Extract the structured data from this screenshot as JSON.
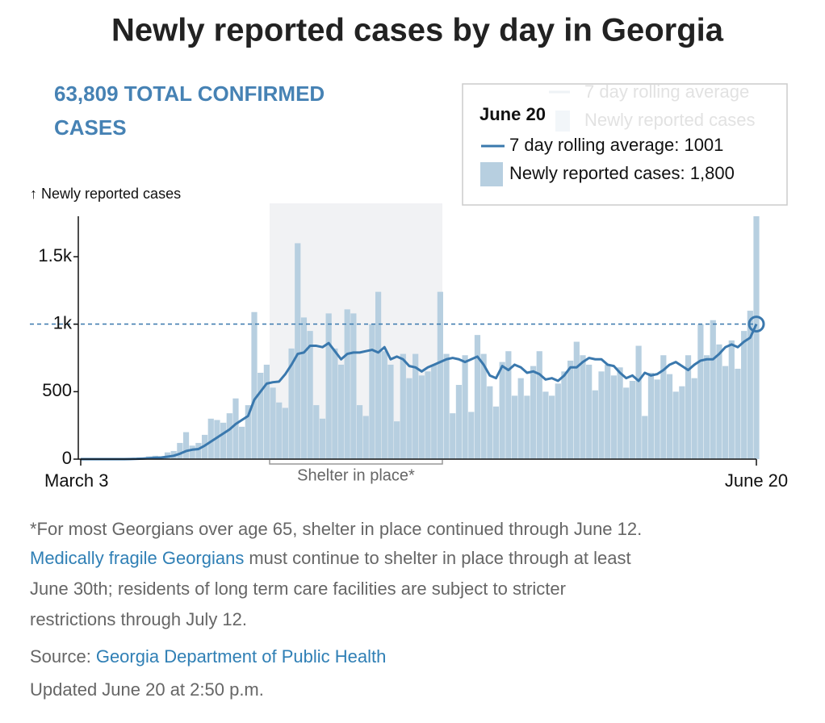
{
  "title": "Newly reported cases by day in Georgia",
  "chart_data": {
    "type": "bar",
    "subtitle_lines": [
      "63,809 TOTAL CONFIRMED",
      "CASES"
    ],
    "y_label": "↑ Newly reported cases",
    "categories": [
      "March 3",
      null,
      null,
      null,
      null,
      null,
      null,
      null,
      null,
      null,
      null,
      null,
      null,
      null,
      null,
      null,
      null,
      null,
      null,
      null,
      null,
      null,
      null,
      null,
      null,
      null,
      null,
      null,
      null,
      null,
      null,
      null,
      null,
      null,
      null,
      null,
      null,
      null,
      null,
      null,
      null,
      null,
      null,
      null,
      null,
      null,
      null,
      null,
      null,
      null,
      null,
      null,
      null,
      null,
      null,
      null,
      null,
      null,
      null,
      null,
      null,
      null,
      null,
      null,
      null,
      null,
      null,
      null,
      null,
      null,
      null,
      null,
      null,
      null,
      null,
      null,
      null,
      null,
      null,
      null,
      null,
      null,
      null,
      null,
      null,
      null,
      null,
      null,
      null,
      null,
      null,
      null,
      null,
      null,
      null,
      null,
      null,
      null,
      null,
      null,
      null,
      null,
      null,
      null,
      null,
      null,
      null,
      null,
      null,
      "June 20"
    ],
    "series": [
      {
        "name": "Newly reported cases",
        "type": "bar",
        "color": "#b7cfe0",
        "values": [
          0,
          0,
          0,
          0,
          0,
          0,
          0,
          0,
          2,
          5,
          10,
          20,
          25,
          20,
          50,
          60,
          120,
          200,
          100,
          120,
          180,
          300,
          290,
          270,
          340,
          450,
          240,
          400,
          1090,
          640,
          700,
          530,
          420,
          380,
          820,
          1600,
          1050,
          950,
          400,
          300,
          1080,
          820,
          700,
          1110,
          1080,
          400,
          320,
          1000,
          1240,
          800,
          700,
          280,
          780,
          600,
          780,
          620,
          650,
          700,
          1240,
          780,
          340,
          550,
          770,
          350,
          920,
          780,
          540,
          390,
          720,
          800,
          470,
          600,
          470,
          690,
          800,
          500,
          470,
          560,
          650,
          730,
          870,
          770,
          700,
          510,
          650,
          700,
          620,
          680,
          530,
          580,
          840,
          320,
          640,
          590,
          770,
          630,
          500,
          540,
          770,
          600,
          1000,
          770,
          1030,
          850,
          690,
          880,
          670,
          950,
          1100,
          1800
        ]
      },
      {
        "name": "7 day rolling average",
        "type": "line",
        "color": "#3a78ad",
        "values": [
          0,
          0,
          0,
          0,
          0,
          0,
          0,
          0,
          1,
          2,
          4,
          7,
          10,
          12,
          18,
          25,
          40,
          60,
          70,
          75,
          100,
          130,
          160,
          190,
          220,
          260,
          290,
          320,
          440,
          500,
          560,
          570,
          575,
          630,
          700,
          780,
          790,
          840,
          840,
          830,
          860,
          800,
          740,
          780,
          790,
          790,
          800,
          810,
          790,
          830,
          740,
          760,
          740,
          690,
          680,
          650,
          680,
          700,
          720,
          740,
          750,
          740,
          720,
          740,
          760,
          700,
          620,
          600,
          690,
          660,
          700,
          680,
          640,
          650,
          630,
          590,
          600,
          580,
          620,
          680,
          680,
          720,
          750,
          740,
          740,
          700,
          690,
          640,
          600,
          620,
          580,
          640,
          620,
          630,
          660,
          700,
          720,
          690,
          660,
          700,
          730,
          740,
          740,
          780,
          830,
          850,
          830,
          870,
          900,
          1001
        ]
      }
    ],
    "ylim": [
      0,
      1800
    ],
    "yticks": [
      0,
      500,
      {
        "value": 1000,
        "label": "1k"
      },
      {
        "value": 1500,
        "label": "1.5k"
      }
    ],
    "annotation": "Shelter in place*",
    "tooltip": {
      "title": "June 20",
      "lines": [
        "7 day rolling average: 1001",
        "Newly reported cases: 1,800"
      ]
    }
  },
  "footnote": {
    "line1": "*For most Georgians over age 65, shelter in place continued through June 12.",
    "link": "Medically fragile Georgians",
    "line2": "must continue to shelter in place through at least",
    "line3": "June 30th; residents of long term care facilities are subject to stricter",
    "line4": "restrictions through July 12."
  },
  "source_label": "Source:",
  "source": "Georgia Department of Public Health",
  "updated": "Updated June 20 at 2:50 p.m."
}
